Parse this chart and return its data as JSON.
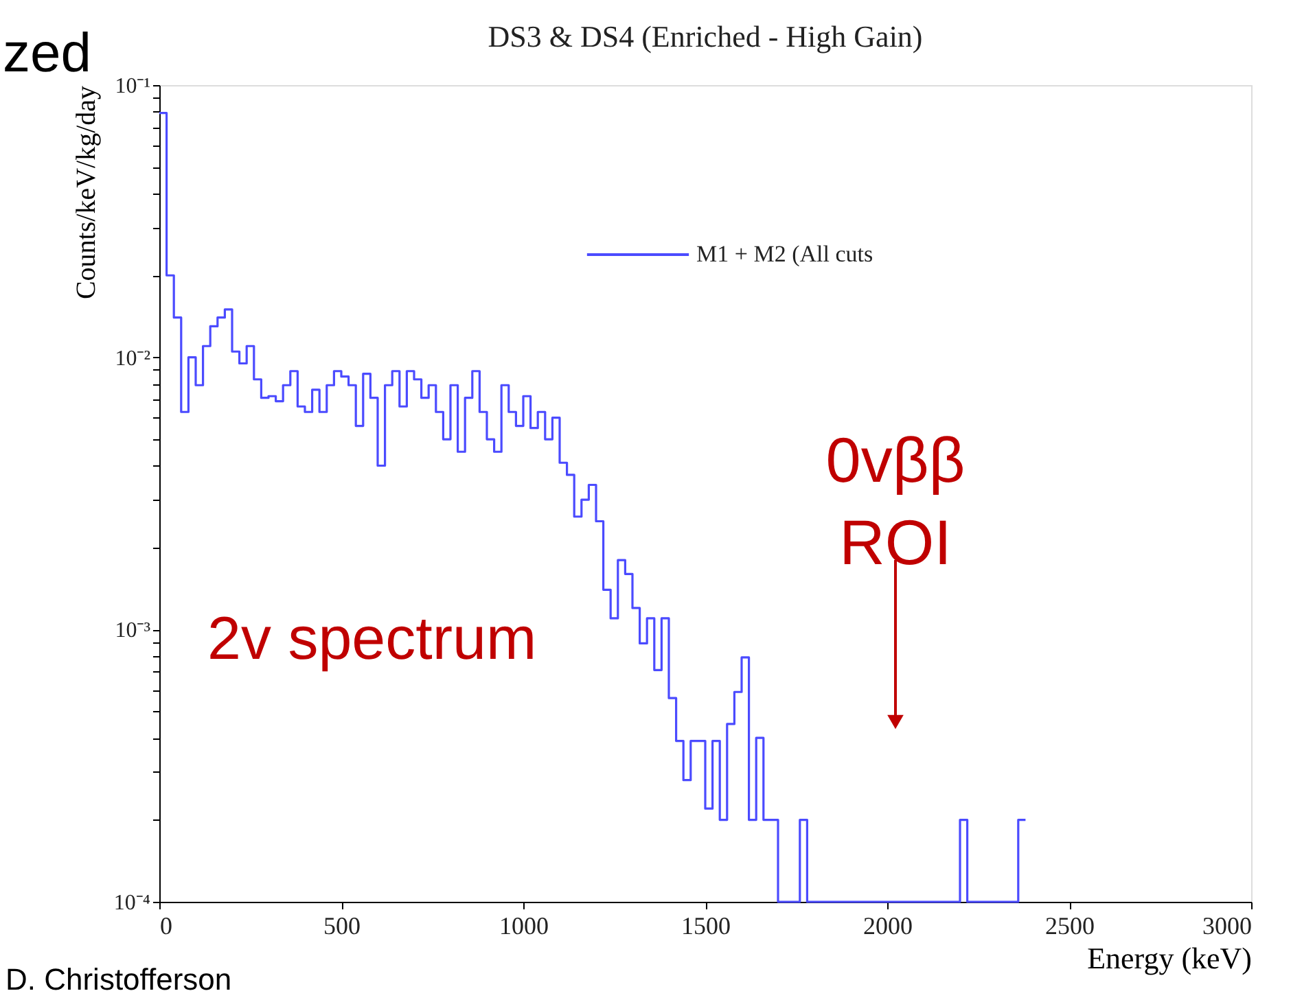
{
  "chart_data": {
    "type": "histogram",
    "title": "DS3 & DS4 (Enriched - High Gain)",
    "xlabel": "Energy (keV)",
    "ylabel": "Counts/keV/kg/day",
    "bins": [
      0,
      20,
      40,
      60,
      80,
      100,
      120,
      140,
      160,
      180,
      200,
      220,
      240,
      260,
      280,
      300,
      320,
      340,
      360,
      380,
      400,
      420,
      440,
      460,
      480,
      500,
      520,
      540,
      560,
      580,
      600,
      620,
      640,
      660,
      680,
      700,
      720,
      740,
      760,
      780,
      800,
      820,
      840,
      860,
      880,
      900,
      920,
      940,
      960,
      980,
      1000,
      1020,
      1040,
      1060,
      1080,
      1100,
      1120,
      1140,
      1160,
      1180,
      1200,
      1220,
      1240,
      1260,
      1280,
      1300,
      1320,
      1340,
      1360,
      1380,
      1400,
      1420,
      1440,
      1460,
      1480,
      1500,
      1520,
      1540,
      1560,
      1580,
      1600,
      1620,
      1640,
      1660,
      1680,
      1700,
      1720,
      1740,
      1760,
      1780,
      1800,
      1820,
      1840,
      1860,
      1880,
      1900,
      1920,
      1940,
      1960,
      1980,
      2000,
      2020,
      2040,
      2060,
      2080,
      2100,
      2120,
      2140,
      2160,
      2180,
      2200,
      2220,
      2240,
      2260,
      2280,
      2300,
      2320,
      2340,
      2360,
      2380
    ],
    "series": [
      {
        "name": "M1 + M2 (All cuts",
        "color": "#4b4bff",
        "values": [
          0.079,
          0.02,
          0.014,
          0.0063,
          0.01,
          0.0079,
          0.011,
          0.013,
          0.014,
          0.015,
          0.0105,
          0.0095,
          0.011,
          0.0083,
          0.0071,
          0.0072,
          0.0069,
          0.0079,
          0.0089,
          0.0066,
          0.0063,
          0.0076,
          0.0063,
          0.0079,
          0.0089,
          0.0085,
          0.0079,
          0.0056,
          0.0087,
          0.0071,
          0.004,
          0.0079,
          0.0089,
          0.0066,
          0.0089,
          0.0083,
          0.0071,
          0.0079,
          0.0063,
          0.005,
          0.0079,
          0.0045,
          0.0071,
          0.0089,
          0.0063,
          0.005,
          0.0045,
          0.0079,
          0.0063,
          0.0056,
          0.0072,
          0.0055,
          0.0063,
          0.005,
          0.006,
          0.0041,
          0.0037,
          0.0026,
          0.003,
          0.0034,
          0.0025,
          0.0014,
          0.0011,
          0.0018,
          0.0016,
          0.0012,
          0.00089,
          0.0011,
          0.00071,
          0.0011,
          0.00056,
          0.00039,
          0.00028,
          0.00039,
          0.00039,
          0.00022,
          0.00039,
          0.0002,
          0.00045,
          0.00059,
          0.00079,
          0.0002,
          0.0004,
          0.0002,
          0.0002,
          0.0001,
          0.0001,
          0.0001,
          0.0002,
          0.0001,
          0.0001,
          0.0001,
          0.0001,
          0.0001,
          0.0001,
          0.0001,
          0.0001,
          0.0001,
          0.0001,
          0.0001,
          0.0001,
          0.0001,
          0.0001,
          0.0001,
          0.0001,
          0.0001,
          0.0001,
          0.0001,
          0.0001,
          0.0001,
          0.0002,
          0.0001,
          0.0001,
          0.0001,
          0.0001,
          0.0001,
          0.0001,
          0.0001,
          0.0002
        ]
      }
    ],
    "xlim": [
      0,
      3000
    ],
    "xticks": [
      0,
      500,
      1000,
      1500,
      2000,
      2500,
      3000
    ],
    "ylim": [
      0.0001,
      0.1
    ],
    "log": true,
    "yticks": [
      {
        "value": 0.0001,
        "label": "10⁻⁴"
      },
      {
        "value": 0.0002,
        "label": null
      },
      {
        "value": 0.0003,
        "label": null
      },
      {
        "value": 0.0004,
        "label": null
      },
      {
        "value": 0.0005,
        "label": null
      },
      {
        "value": 0.0006,
        "label": null
      },
      {
        "value": 0.0007,
        "label": null
      },
      {
        "value": 0.0008,
        "label": null
      },
      {
        "value": 0.0009,
        "label": null
      },
      {
        "value": 0.001,
        "label": "10⁻³"
      },
      {
        "value": 0.002,
        "label": null
      },
      {
        "value": 0.003,
        "label": null
      },
      {
        "value": 0.004,
        "label": null
      },
      {
        "value": 0.005,
        "label": null
      },
      {
        "value": 0.006,
        "label": null
      },
      {
        "value": 0.007,
        "label": null
      },
      {
        "value": 0.008,
        "label": null
      },
      {
        "value": 0.009,
        "label": null
      },
      {
        "value": 0.01,
        "label": "10⁻²"
      },
      {
        "value": 0.02,
        "label": null
      },
      {
        "value": 0.03,
        "label": null
      },
      {
        "value": 0.04,
        "label": null
      },
      {
        "value": 0.05,
        "label": null
      },
      {
        "value": 0.06,
        "label": null
      },
      {
        "value": 0.07,
        "label": null
      },
      {
        "value": 0.08,
        "label": null
      },
      {
        "value": 0.09,
        "label": null
      },
      {
        "value": 0.1,
        "label": "10⁻¹"
      }
    ],
    "grid": false,
    "legend": "top right",
    "annotations": [
      "zed",
      "2v spectrum",
      "0vββ\nROI",
      "D. Christofferson"
    ]
  }
}
